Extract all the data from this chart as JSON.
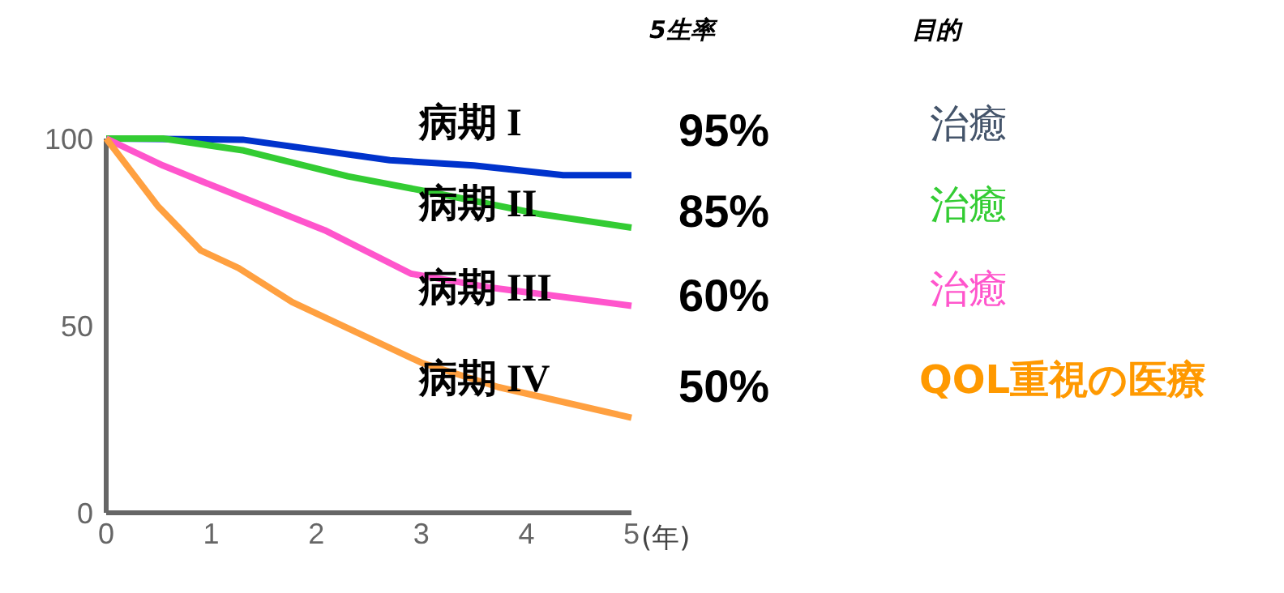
{
  "chart_data": {
    "type": "line",
    "xlabel": "(年)",
    "xlim": [
      0,
      5
    ],
    "ylim": [
      0,
      100
    ],
    "xticks": [
      0,
      1,
      2,
      3,
      4,
      5
    ],
    "yticks": [
      0,
      50,
      100
    ],
    "grid": false,
    "marker": "none",
    "line_style": "solid",
    "series": [
      {
        "color": "#0033cc",
        "x": [
          0,
          1.3,
          2.7,
          3.5,
          4.35,
          5
        ],
        "values": [
          100,
          99.7,
          94.2,
          92.8,
          90.2,
          90.2
        ]
      },
      {
        "color": "#33cc33",
        "x": [
          0,
          0.54,
          1.31,
          2.3,
          3.1,
          4.13,
          5
        ],
        "values": [
          100,
          100,
          96.8,
          89.9,
          85.6,
          79.8,
          76.2
        ]
      },
      {
        "color": "#ff55cc",
        "x": [
          0,
          0.54,
          1.05,
          2.08,
          2.9,
          3.63,
          5
        ],
        "values": [
          100,
          92.8,
          87,
          75.5,
          63.9,
          60.3,
          55.3
        ]
      },
      {
        "color": "#ffa040",
        "x": [
          0,
          0.49,
          0.9,
          1.26,
          1.77,
          3.0,
          3.73,
          5
        ],
        "values": [
          100,
          82,
          70.1,
          65.4,
          56.3,
          40.1,
          33.6,
          25.4
        ]
      }
    ],
    "annotations": [
      "5生率",
      "目的",
      "病期 I",
      "95%",
      "治癒",
      "病期 II",
      "85%",
      "治癒",
      "病期 III",
      "60%",
      "治癒",
      "病期 IV",
      "50%",
      "QOL重視の医療"
    ]
  }
}
